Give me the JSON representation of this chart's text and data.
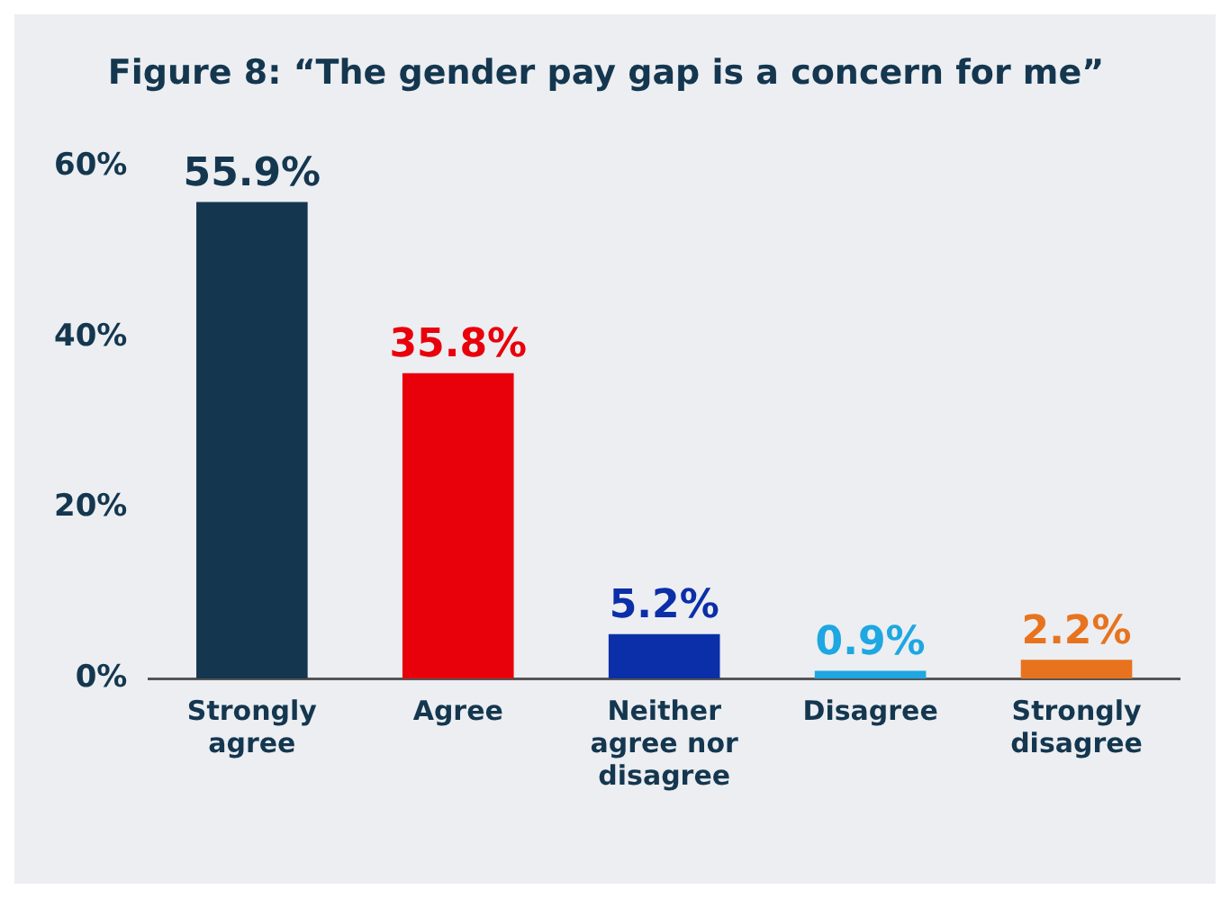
{
  "chart_data": {
    "type": "bar",
    "title": "Figure 8: “The gender pay gap is a concern for me”",
    "categories": [
      "Strongly agree",
      "Agree",
      "Neither agree nor disagree",
      "Disagree",
      "Strongly disagree"
    ],
    "values": [
      55.9,
      35.8,
      5.2,
      0.9,
      2.2
    ],
    "value_labels": [
      "55.9%",
      "35.8%",
      "5.2%",
      "0.9%",
      "2.2%"
    ],
    "colors": [
      "#14374f",
      "#e8000b",
      "#0b2fa8",
      "#1ea7e1",
      "#e8731e"
    ],
    "ylim": [
      0,
      60
    ],
    "yticks": [
      {
        "value": 0,
        "label": "0%"
      },
      {
        "value": 20,
        "label": "20%"
      },
      {
        "value": 40,
        "label": "40%"
      },
      {
        "value": 60,
        "label": "60%"
      }
    ],
    "grid": false,
    "legend": false
  }
}
